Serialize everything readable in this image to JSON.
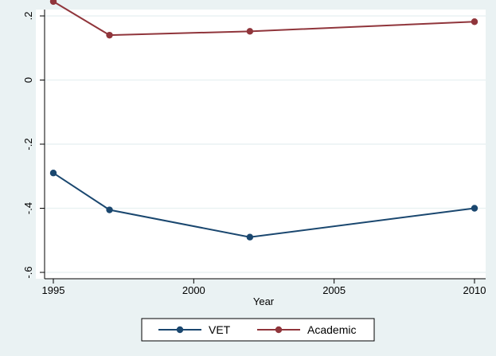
{
  "chart_data": {
    "type": "line",
    "xlabel": "Year",
    "ylabel": "",
    "x": [
      1995,
      1997,
      2002,
      2010
    ],
    "xticks": [
      "1995",
      "2000",
      "2005",
      "2010"
    ],
    "xlim": [
      1995,
      2010
    ],
    "yticks": [
      ".2",
      "0",
      "-.2",
      "-.4",
      "-.6"
    ],
    "ylim": [
      -0.6,
      0.2
    ],
    "grid": true,
    "legend_position": "bottom",
    "series": [
      {
        "name": "VET",
        "values": [
          -0.29,
          -0.405,
          -0.49,
          -0.4
        ],
        "color": "#1a476f"
      },
      {
        "name": "Academic",
        "values": [
          0.245,
          0.14,
          0.152,
          0.182
        ],
        "color": "#90353b"
      }
    ]
  }
}
